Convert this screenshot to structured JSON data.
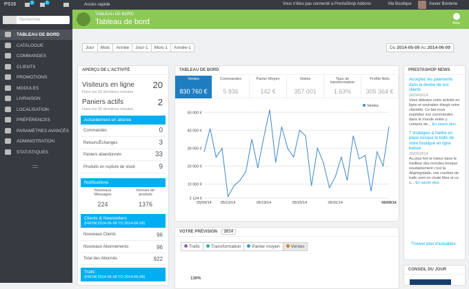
{
  "topbar": {
    "shop_code": "PS16",
    "badges": [
      "3",
      "6"
    ],
    "quick_access": "Accès rapide",
    "addons": "Vous n'êtes pas connecté à PrestaShop Addons",
    "shop": "Ma Boutique",
    "user": "Xavier Borderie"
  },
  "sidebar": {
    "search_placeholder": "Rechercher",
    "menu": [
      "TABLEAU DE BORD",
      "CATALOGUE",
      "COMMANDES",
      "CLIENTS",
      "PROMOTIONS",
      "MODULES",
      "LIVRAISON",
      "LOCALISATION",
      "PRÉFÉRENCES",
      "PARAMÈTRES AVANCÉS",
      "ADMINISTRATION",
      "STATISTIQUES"
    ]
  },
  "header": {
    "breadcrumb": "TABLEAU DE BORD",
    "title": "Tableau de bord",
    "help": "Aide"
  },
  "date_buttons": [
    "Jour",
    "Mois",
    "Année",
    "Jour-1",
    "Mois-1",
    "Année-1"
  ],
  "date_range": {
    "from_label": "Du",
    "from": "2014-05-09",
    "to_label": "Au",
    "to": "2014-06-09"
  },
  "activity": {
    "title": "APERÇU DE L'ACTIVITÉ",
    "online": {
      "label": "Visiteurs en ligne",
      "value": "20",
      "sub": "Dans les 30 dernières minutes"
    },
    "carts": {
      "label": "Paniers actifs",
      "value": "2",
      "sub": "Dans les 30 dernières minutes"
    },
    "pending": {
      "title": "Actuellement en attente",
      "rows": [
        [
          "Commandes",
          "0"
        ],
        [
          "Retours/Échanges",
          "3"
        ],
        [
          "Paniers abandonnés",
          "33"
        ],
        [
          "Produits en rupture de stock",
          "9"
        ]
      ]
    },
    "notifications": {
      "title": "Notifications",
      "cols": [
        [
          "Nouveaux Messages",
          "224"
        ],
        [
          "Revues de produits",
          "1376"
        ]
      ]
    },
    "customers": {
      "title": "Clients & Newsletters",
      "period": "(FROM 2014-05-09 TO 2014-06-09)",
      "rows": [
        [
          "Nouveaux Clients",
          "96"
        ],
        [
          "Nouveaux Abonnements",
          "96"
        ],
        [
          "Total des Abonnés",
          "922"
        ]
      ]
    },
    "traffic": {
      "title": "Trafic",
      "period": "(FROM 2014-05-09 TO 2014-06-09)"
    }
  },
  "dashboard": {
    "title": "TABLEAU DE BORD",
    "kpis": [
      {
        "label": "Ventes",
        "value": "830 760 €"
      },
      {
        "label": "Commandes",
        "value": "5 836"
      },
      {
        "label": "Panier Moyen",
        "value": "142 €"
      },
      {
        "label": "Visites",
        "value": "357 001"
      },
      {
        "label": "Taux de transformation",
        "value": "1.63%"
      },
      {
        "label": "Profits Nets",
        "value": "305 364 €"
      }
    ],
    "chart": {
      "type": "line",
      "series_name": "Ventes",
      "color": "#3a87c8",
      "categories": [
        "05/09/14",
        null,
        null,
        null,
        "05/13/14",
        null,
        null,
        null,
        null,
        null,
        "05/19/14",
        null,
        null,
        null,
        null,
        null,
        "05/25/14",
        null,
        null,
        null,
        null,
        null,
        "05/31/14",
        null,
        null,
        null,
        null,
        null,
        null,
        null,
        null,
        "06/09/14"
      ],
      "values": [
        28000,
        41000,
        25000,
        30000,
        3000,
        9000,
        12000,
        17000,
        35000,
        19000,
        36000,
        51500,
        22000,
        42000,
        30000,
        25000,
        40000,
        37000,
        9000,
        30000,
        22000,
        8000,
        14000,
        25000,
        12000,
        37000,
        24000,
        26000,
        6000,
        28000,
        20000,
        42000
      ],
      "ylim": [
        2124,
        52800
      ],
      "yticks": [
        {
          "value": 2124,
          "label": "2 124 €"
        },
        {
          "value": 10000,
          "label": "10 000 €"
        },
        {
          "value": 20000,
          "label": "20 000 €"
        },
        {
          "value": 30000,
          "label": "30 000 €"
        },
        {
          "value": 40000,
          "label": "40 000 €"
        },
        {
          "value": 50000,
          "label": "50 000 €"
        }
      ],
      "grid": true
    }
  },
  "forecast": {
    "title": "VOTRE PRÉVISION",
    "year": "2014",
    "legend": [
      {
        "name": "Trafic",
        "color": "#9b59b6"
      },
      {
        "name": "Transformation",
        "color": "#1abc9c"
      },
      {
        "name": "Panier moyen",
        "color": "#3498db"
      },
      {
        "name": "Ventes",
        "color": "#e67e22"
      }
    ],
    "axis_label": "136%"
  },
  "news": {
    "title": "PRESTASHOP NEWS",
    "articles": [
      {
        "title": "Acceptez les paiements dans la devise de vos clients",
        "date": "06/04/2014",
        "body": "Vous débutez votre activité en ligne et souhaitez élargir votre clientèle. Ce fait vous expédiez vos commandes dans le monde entier y compris de...",
        "more": "En savoir plus"
      },
      {
        "title": "7 stratégies à mettre en place lorsque le trafic de votre boutique en ligne baisse",
        "date": "28/05/2014",
        "body": "Au plus fort le mieux dans le meilleur des mondes lorsque soudainement c'est la dégringolade, vos courbes de trafic sont en chute libre et ce s...",
        "more": "En savoir plus"
      }
    ],
    "more_news": "Trouver plus d'actualités"
  },
  "tip": {
    "title": "CONSEIL DU JOUR"
  }
}
